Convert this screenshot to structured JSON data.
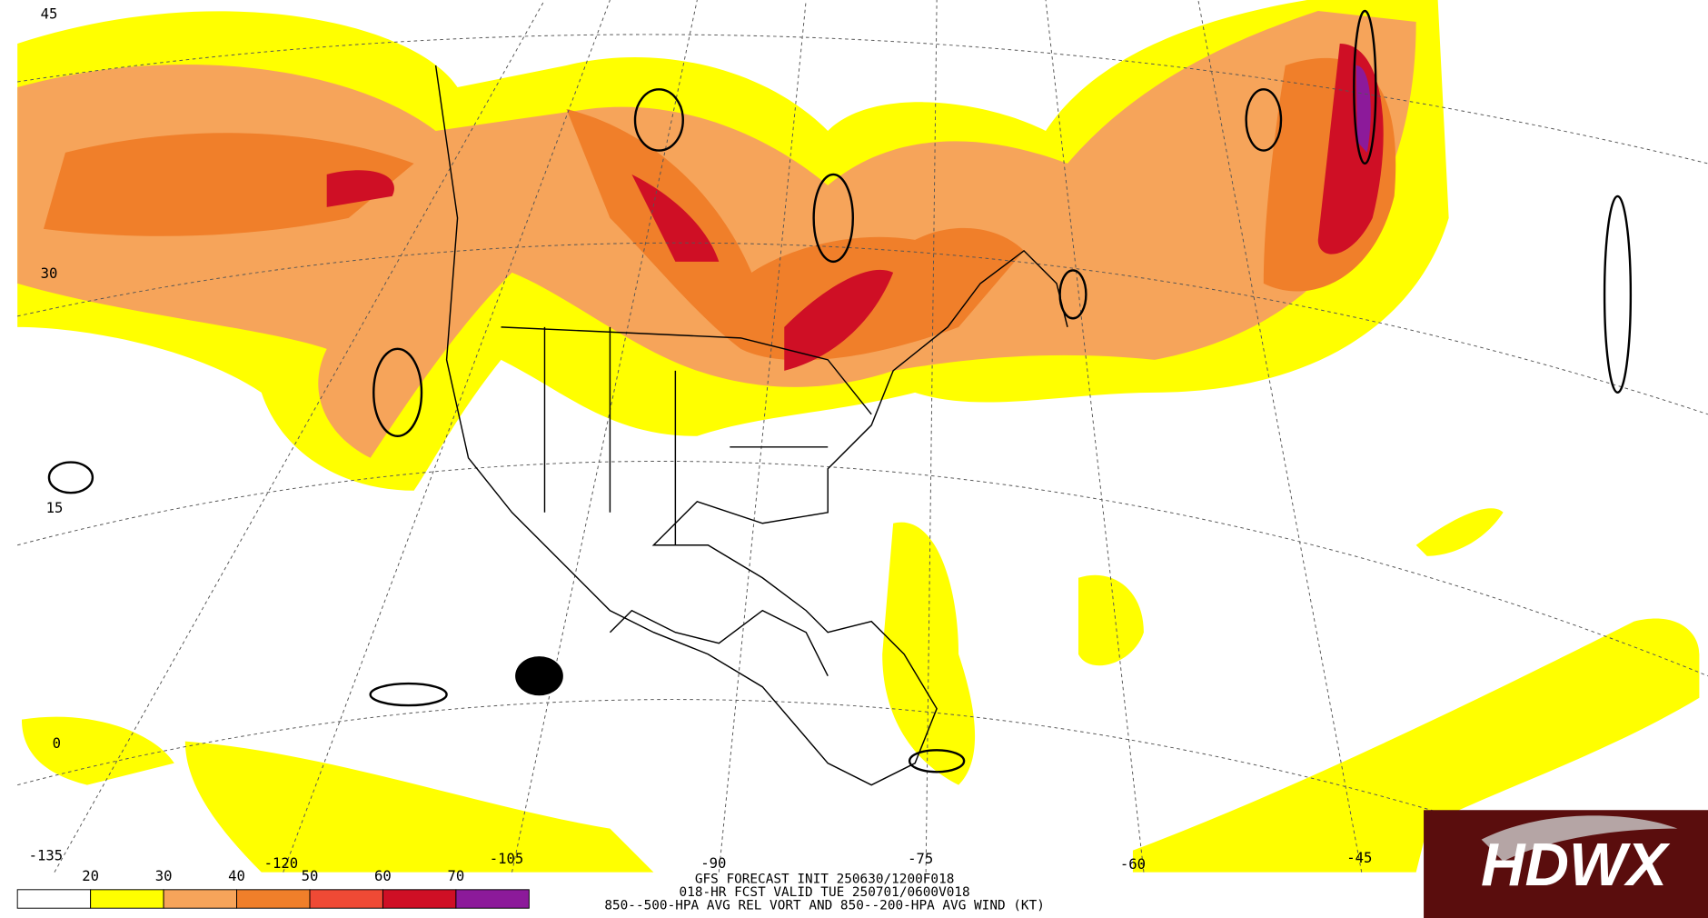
{
  "map": {
    "lat_labels": [
      "45",
      "30",
      "15",
      "0"
    ],
    "lon_labels": [
      "-135",
      "-120",
      "-105",
      "-90",
      "-75",
      "-60",
      "-45"
    ]
  },
  "legend": {
    "labels": [
      "20",
      "30",
      "40",
      "50",
      "60",
      "70"
    ],
    "colors": [
      "#ffffff",
      "#ffff00",
      "#f6a45a",
      "#f07f2a",
      "#ef4a35",
      "#cf0f25",
      "#8c1a9a"
    ]
  },
  "footer": {
    "line1": "GFS FORECAST INIT 250630/1200F018",
    "line2": "018-HR FCST VALID TUE 250701/0600V018",
    "line3": "850--500-HPA AVG REL VORT AND 850--200-HPA AVG WIND (KT)"
  },
  "logo": {
    "text": "HDWX"
  }
}
